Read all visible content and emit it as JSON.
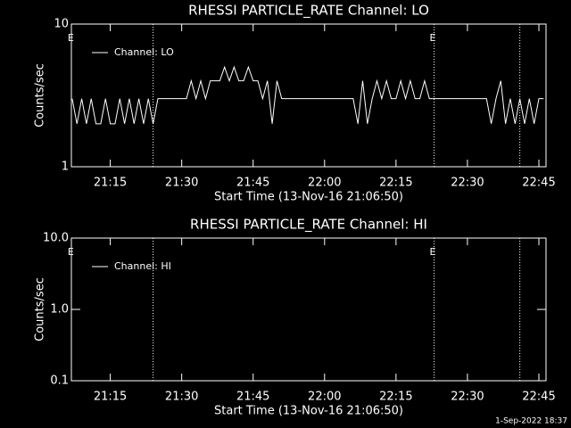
{
  "chart_data": [
    {
      "type": "line",
      "title": "RHESSI PARTICLE_RATE Channel: LO",
      "xlabel": "Start Time (13-Nov-16 21:06:50)",
      "ylabel": "Counts/sec",
      "log_y": true,
      "xlim": [
        "21:06:50",
        "22:46:30"
      ],
      "xticks": [
        "21:15",
        "21:30",
        "21:45",
        "22:00",
        "22:15",
        "22:30",
        "22:45"
      ],
      "ylim": [
        1,
        10
      ],
      "yticks": [
        1,
        10
      ],
      "x": [
        "21:07",
        "21:08",
        "21:09",
        "21:10",
        "21:11",
        "21:12",
        "21:13",
        "21:14",
        "21:15",
        "21:16",
        "21:17",
        "21:18",
        "21:19",
        "21:20",
        "21:21",
        "21:22",
        "21:23",
        "21:24",
        "21:25",
        "21:26",
        "21:27",
        "21:28",
        "21:29",
        "21:30",
        "21:31",
        "21:32",
        "21:33",
        "21:34",
        "21:35",
        "21:36",
        "21:37",
        "21:38",
        "21:39",
        "21:40",
        "21:41",
        "21:42",
        "21:43",
        "21:44",
        "21:45",
        "21:46",
        "21:47",
        "21:48",
        "21:49",
        "21:50",
        "21:51",
        "21:52",
        "21:53",
        "21:54",
        "21:55",
        "21:56",
        "21:57",
        "21:58",
        "21:59",
        "22:00",
        "22:01",
        "22:02",
        "22:03",
        "22:04",
        "22:05",
        "22:06",
        "22:07",
        "22:08",
        "22:09",
        "22:10",
        "22:11",
        "22:12",
        "22:13",
        "22:14",
        "22:15",
        "22:16",
        "22:17",
        "22:18",
        "22:19",
        "22:20",
        "22:21",
        "22:22",
        "22:23",
        "22:24",
        "22:25",
        "22:26",
        "22:27",
        "22:28",
        "22:29",
        "22:30",
        "22:31",
        "22:32",
        "22:33",
        "22:34",
        "22:35",
        "22:36",
        "22:37",
        "22:38",
        "22:39",
        "22:40",
        "22:41",
        "22:42",
        "22:43",
        "22:44",
        "22:45",
        "22:46"
      ],
      "series": [
        {
          "name": "Channel: LO",
          "color": "#ffffff",
          "values": [
            3,
            2,
            3,
            2,
            3,
            2,
            2,
            3,
            2,
            2,
            3,
            2,
            3,
            2,
            3,
            2,
            3,
            2,
            3,
            3,
            3,
            3,
            3,
            3,
            3,
            4,
            3,
            4,
            3,
            4,
            4,
            4,
            5,
            4,
            5,
            4,
            4,
            5,
            4,
            4,
            3,
            4,
            2,
            4,
            3,
            3,
            3,
            3,
            3,
            3,
            3,
            3,
            3,
            3,
            3,
            3,
            3,
            3,
            3,
            3,
            2,
            4,
            2,
            3,
            4,
            3,
            4,
            3,
            3,
            4,
            3,
            4,
            3,
            3,
            4,
            3,
            3,
            3,
            3,
            3,
            3,
            3,
            3,
            3,
            3,
            3,
            3,
            3,
            2,
            3,
            4,
            2,
            3,
            2,
            3,
            2,
            3,
            2,
            3,
            3
          ]
        }
      ],
      "vlines": [
        "21:24",
        "22:23",
        "22:41"
      ],
      "annotations": [
        {
          "text": "E",
          "x": "21:07"
        },
        {
          "text": "E",
          "x": "22:23"
        }
      ]
    },
    {
      "type": "line",
      "title": "RHESSI PARTICLE_RATE Channel: HI",
      "xlabel": "Start Time (13-Nov-16 21:06:50)",
      "ylabel": "Counts/sec",
      "log_y": true,
      "xlim": [
        "21:06:50",
        "22:46:30"
      ],
      "xticks": [
        "21:15",
        "21:30",
        "21:45",
        "22:00",
        "22:15",
        "22:30",
        "22:45"
      ],
      "ylim": [
        0.1,
        10
      ],
      "yticks": [
        0.1,
        {
          "value": 1,
          "label": "1.0"
        },
        {
          "value": 10,
          "label": "10.0"
        }
      ],
      "x": [],
      "series": [
        {
          "name": "Channel: HI",
          "color": "#ffffff",
          "values": []
        }
      ],
      "vlines": [
        "21:24",
        "22:23",
        "22:41"
      ],
      "annotations": [
        {
          "text": "E",
          "x": "21:07"
        },
        {
          "text": "E",
          "x": "22:23"
        }
      ]
    }
  ],
  "footer": "1-Sep-2022 18:37"
}
